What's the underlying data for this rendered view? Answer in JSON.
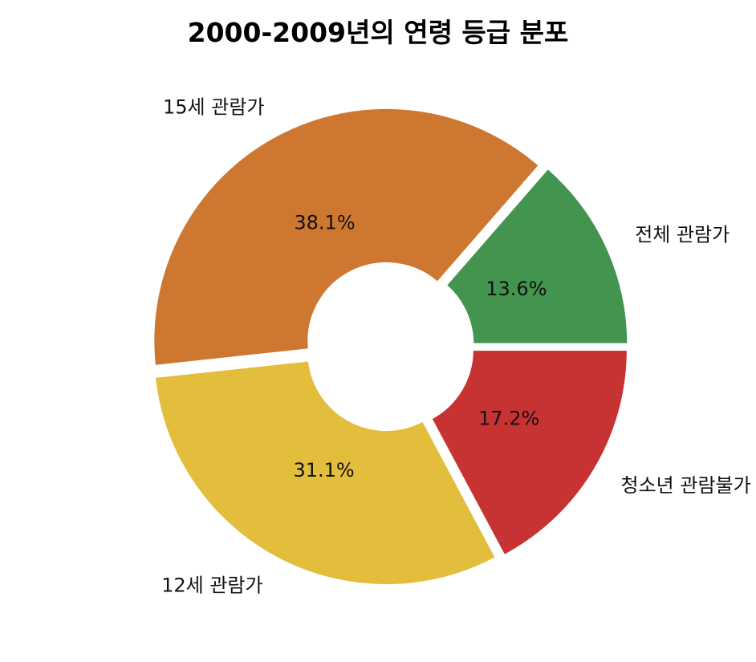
{
  "chart_data": {
    "type": "pie",
    "title": "2000-2009년의 연령 등급 분포",
    "donut": true,
    "slices": [
      {
        "label": "전체 관람가",
        "percent": 13.6,
        "color": "#43944f"
      },
      {
        "label": "15세 관람가",
        "percent": 38.1,
        "color": "#ce7731"
      },
      {
        "label": "12세 관람가",
        "percent": 31.1,
        "color": "#e3bd3c"
      },
      {
        "label": "청소년 관람불가",
        "percent": 17.2,
        "color": "#c73333"
      }
    ],
    "pct_labels": [
      "13.6%",
      "38.1%",
      "31.1%",
      "17.2%"
    ]
  }
}
